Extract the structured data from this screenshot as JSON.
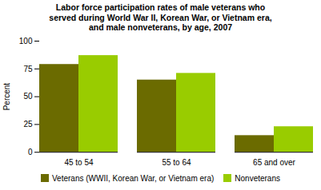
{
  "chart_data": {
    "type": "bar",
    "title": "Labor force participation rates of male veterans who\nserved during World War II, Korean War, or Vietnam era,\nand male nonveterans, by age, 2007",
    "categories": [
      "45 to 54",
      "55 to 64",
      "65 and over"
    ],
    "series": [
      {
        "name": "Veterans (WWII, Korean War, or Vietnam era)",
        "color": "#6b6b00",
        "values": [
          79,
          65,
          15
        ]
      },
      {
        "name": "Nonveterans",
        "color": "#99cc00",
        "values": [
          87,
          71,
          23
        ]
      }
    ],
    "ylabel": "Percent",
    "ylim": [
      0,
      100
    ],
    "yticks": [
      0,
      25,
      50,
      75,
      100
    ],
    "grid": false,
    "legend": "bottom"
  }
}
